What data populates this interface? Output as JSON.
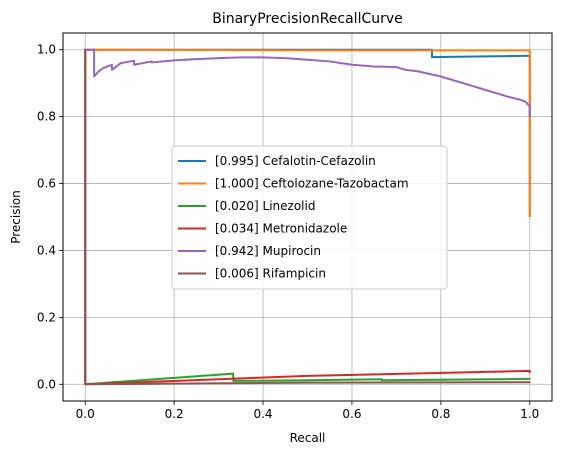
{
  "chart_data": {
    "type": "line",
    "title": "BinaryPrecisionRecallCurve",
    "xlabel": "Recall",
    "ylabel": "Precision",
    "xlim": [
      -0.05,
      1.05
    ],
    "ylim": [
      -0.05,
      1.05
    ],
    "xticks": [
      0.0,
      0.2,
      0.4,
      0.6,
      0.8,
      1.0
    ],
    "yticks": [
      0.0,
      0.2,
      0.4,
      0.6,
      0.8,
      1.0
    ],
    "xtick_labels": [
      "0.0",
      "0.2",
      "0.4",
      "0.6",
      "0.8",
      "1.0"
    ],
    "ytick_labels": [
      "0.0",
      "0.2",
      "0.4",
      "0.6",
      "0.8",
      "1.0"
    ],
    "grid": true,
    "legend_position": "center",
    "series": [
      {
        "name": "[0.995] Cefalotin-Cefazolin",
        "color": "#1f77b4",
        "x": [
          0.0,
          0.0,
          0.78,
          0.78,
          0.9,
          1.0,
          1.0
        ],
        "y": [
          0.0,
          1.0,
          1.0,
          0.978,
          0.98,
          0.982,
          0.5
        ]
      },
      {
        "name": "[1.000] Ceftolozane-Tazobactam",
        "color": "#ff7f0e",
        "x": [
          0.0,
          0.0,
          0.5,
          1.0,
          1.0
        ],
        "y": [
          0.0,
          1.0,
          0.998,
          0.998,
          0.5
        ]
      },
      {
        "name": "[0.020] Linezolid",
        "color": "#2ca02c",
        "x": [
          0.0,
          0.333,
          0.333,
          0.5,
          0.5,
          0.667,
          0.667,
          1.0,
          1.0
        ],
        "y": [
          0.0,
          0.032,
          0.01,
          0.012,
          0.012,
          0.015,
          0.012,
          0.016,
          0.015
        ]
      },
      {
        "name": "[0.034] Metronidazole",
        "color": "#d62728",
        "x": [
          0.0,
          0.5,
          0.5,
          1.0,
          1.0
        ],
        "y": [
          0.0,
          0.025,
          0.025,
          0.04,
          0.034
        ]
      },
      {
        "name": "[0.942] Mupirocin",
        "color": "#9467bd",
        "x": [
          0.0,
          0.0,
          0.02,
          0.02,
          0.03,
          0.04,
          0.05,
          0.06,
          0.06,
          0.08,
          0.1,
          0.11,
          0.11,
          0.15,
          0.15,
          0.2,
          0.25,
          0.3,
          0.35,
          0.4,
          0.45,
          0.5,
          0.55,
          0.6,
          0.65,
          0.7,
          0.72,
          0.75,
          0.8,
          0.85,
          0.9,
          0.95,
          0.98,
          0.99,
          1.0,
          1.0
        ],
        "y": [
          0.0,
          1.0,
          1.0,
          0.92,
          0.935,
          0.945,
          0.95,
          0.955,
          0.94,
          0.96,
          0.965,
          0.967,
          0.955,
          0.965,
          0.962,
          0.968,
          0.972,
          0.975,
          0.977,
          0.977,
          0.975,
          0.97,
          0.965,
          0.955,
          0.95,
          0.948,
          0.94,
          0.935,
          0.92,
          0.9,
          0.88,
          0.86,
          0.85,
          0.845,
          0.83,
          0.8
        ]
      },
      {
        "name": "[0.006] Rifampicin",
        "color": "#8c564b",
        "x": [
          0.0,
          0.0,
          0.0,
          0.5,
          1.0,
          1.0
        ],
        "y": [
          0.0,
          1.0,
          0.0,
          0.005,
          0.006,
          0.005
        ]
      }
    ]
  }
}
